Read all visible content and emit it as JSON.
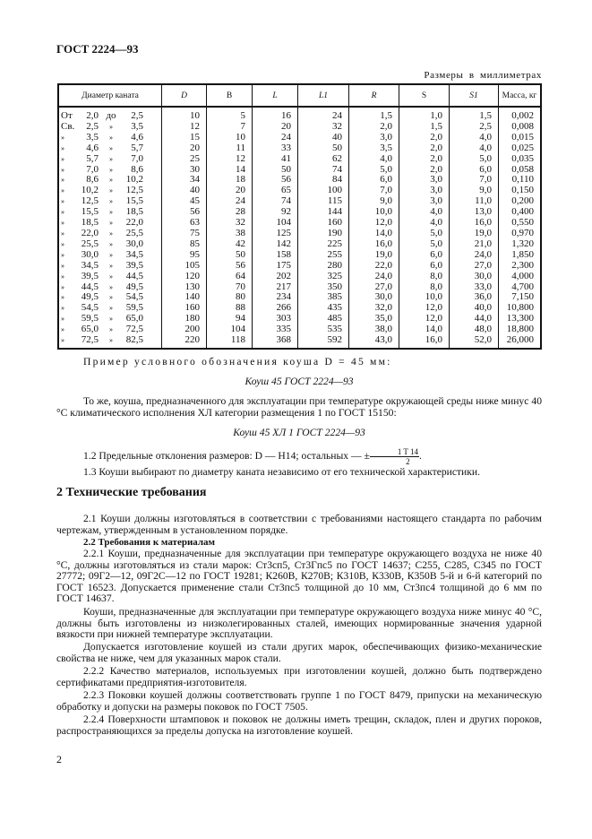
{
  "header": {
    "doc_code": "ГОСТ 2224—93",
    "units": "Размеры в миллиметрах"
  },
  "table": {
    "columns": [
      "Диаметр каната",
      "D",
      "B",
      "L",
      "L1",
      "R",
      "S",
      "S1",
      "Масса, кг"
    ],
    "rows": [
      [
        "От",
        "2,0",
        "до",
        "2,5",
        "10",
        "5",
        "16",
        "24",
        "1,5",
        "1,0",
        "1,5",
        "0,002"
      ],
      [
        "Св.",
        "2,5",
        "»",
        "3,5",
        "12",
        "7",
        "20",
        "32",
        "2,0",
        "1,5",
        "2,5",
        "0,008"
      ],
      [
        "»",
        "3,5",
        "»",
        "4,6",
        "15",
        "10",
        "24",
        "40",
        "3,0",
        "2,0",
        "4,0",
        "0,015"
      ],
      [
        "»",
        "4,6",
        "»",
        "5,7",
        "20",
        "11",
        "33",
        "50",
        "3,5",
        "2,0",
        "4,0",
        "0,025"
      ],
      [
        "»",
        "5,7",
        "»",
        "7,0",
        "25",
        "12",
        "41",
        "62",
        "4,0",
        "2,0",
        "5,0",
        "0,035"
      ],
      [
        "»",
        "7,0",
        "»",
        "8,6",
        "30",
        "14",
        "50",
        "74",
        "5,0",
        "2,0",
        "6,0",
        "0,058"
      ],
      [
        "»",
        "8,6",
        "»",
        "10,2",
        "34",
        "18",
        "56",
        "84",
        "6,0",
        "3,0",
        "7,0",
        "0,110"
      ],
      [
        "»",
        "10,2",
        "»",
        "12,5",
        "40",
        "20",
        "65",
        "100",
        "7,0",
        "3,0",
        "9,0",
        "0,150"
      ],
      [
        "»",
        "12,5",
        "»",
        "15,5",
        "45",
        "24",
        "74",
        "115",
        "9,0",
        "3,0",
        "11,0",
        "0,200"
      ],
      [
        "»",
        "15,5",
        "»",
        "18,5",
        "56",
        "28",
        "92",
        "144",
        "10,0",
        "4,0",
        "13,0",
        "0,400"
      ],
      [
        "»",
        "18,5",
        "»",
        "22,0",
        "63",
        "32",
        "104",
        "160",
        "12,0",
        "4,0",
        "16,0",
        "0,550"
      ],
      [
        "»",
        "22,0",
        "»",
        "25,5",
        "75",
        "38",
        "125",
        "190",
        "14,0",
        "5,0",
        "19,0",
        "0,970"
      ],
      [
        "»",
        "25,5",
        "»",
        "30,0",
        "85",
        "42",
        "142",
        "225",
        "16,0",
        "5,0",
        "21,0",
        "1,320"
      ],
      [
        "»",
        "30,0",
        "»",
        "34,5",
        "95",
        "50",
        "158",
        "255",
        "19,0",
        "6,0",
        "24,0",
        "1,850"
      ],
      [
        "»",
        "34,5",
        "»",
        "39,5",
        "105",
        "56",
        "175",
        "280",
        "22,0",
        "6,0",
        "27,0",
        "2,300"
      ],
      [
        "»",
        "39,5",
        "»",
        "44,5",
        "120",
        "64",
        "202",
        "325",
        "24,0",
        "8,0",
        "30,0",
        "4,000"
      ],
      [
        "»",
        "44,5",
        "»",
        "49,5",
        "130",
        "70",
        "217",
        "350",
        "27,0",
        "8,0",
        "33,0",
        "4,700"
      ],
      [
        "»",
        "49,5",
        "»",
        "54,5",
        "140",
        "80",
        "234",
        "385",
        "30,0",
        "10,0",
        "36,0",
        "7,150"
      ],
      [
        "»",
        "54,5",
        "»",
        "59,5",
        "160",
        "88",
        "266",
        "435",
        "32,0",
        "12,0",
        "40,0",
        "10,800"
      ],
      [
        "»",
        "59,5",
        "»",
        "65,0",
        "180",
        "94",
        "303",
        "485",
        "35,0",
        "12,0",
        "44,0",
        "13,300"
      ],
      [
        "»",
        "65,0",
        "»",
        "72,5",
        "200",
        "104",
        "335",
        "535",
        "38,0",
        "14,0",
        "48,0",
        "18,800"
      ],
      [
        "»",
        "72,5",
        "»",
        "82,5",
        "220",
        "118",
        "368",
        "592",
        "43,0",
        "16,0",
        "52,0",
        "26,000"
      ]
    ]
  },
  "example": {
    "intro": "Пример условного обозначения коуша D = 45 мм:",
    "designation1": "Коуш 45 ГОСТ 2224—93",
    "same_text": "То же, коуша, предназначенного для эксплуатации при температуре окружающей среды ниже минус 40 °С климатического исполнения ХЛ категории размещения 1 по ГОСТ 15150:",
    "designation2": "Коуш 45 ХЛ 1 ГОСТ 2224—93"
  },
  "clause_1_2": {
    "text": "1.2 Предельные отклонения размеров: D — H14; остальных — ±",
    "frac_num": "1 T 14",
    "frac_den": "2",
    "end": "."
  },
  "clause_1_3": "1.3 Коуши выбирают по диаметру каната независимо от его технической характеристики.",
  "section2": {
    "heading": "2 Технические требования",
    "p2_1": "2.1 Коуши должны изготовляться в соответствии с требованиями настоящего стандарта по рабочим чертежам, утвержденным в установленном порядке.",
    "sub2_2": "2.2 Требования к материалам",
    "p2_2_1": "2.2.1 Коуши, предназначенные для эксплуатации при температуре окружающего воздуха не ниже 40 °С, должны изготовляться из стали марок: Ст3сп5, Ст3Гпс5 по ГОСТ 14637; С255, С285, С345 по ГОСТ 27772; 09Г2—12, 09Г2С—12 по ГОСТ 19281; К260В, К270В; К310В, К330В, К350В 5-й и 6-й категорий по ГОСТ 16523. Допускается применение стали Ст3пс5 толщиной до 10 мм, Ст3пс4 толщиной до 6 мм по ГОСТ 14637.",
    "p_low": "Коуши, предназначенные для эксплуатации при температуре окружающего воздуха ниже минус 40 °С, должны быть изготовлены из низколегированных сталей, имеющих нормированные значения ударной вязкости при нижней температуре эксплуатации.",
    "p_other": "Допускается изготовление коушей из стали других марок, обеспечивающих физико-механические свойства не ниже, чем для указанных марок стали.",
    "p2_2_2": "2.2.2 Качество материалов, используемых при изготовлении коушей, должно быть подтверждено сертификатами предприятия-изготовителя.",
    "p2_2_3": "2.2.3 Поковки коушей должны соответствовать группе 1 по ГОСТ 8479, припуски на механическую обработку и допуски на размеры поковок по ГОСТ 7505.",
    "p2_2_4": "2.2.4 Поверхности штамповок и поковок не должны иметь трещин, складок, плен и других пороков, распространяющихся за пределы допуска на изготовление коушей."
  },
  "page_number": "2"
}
